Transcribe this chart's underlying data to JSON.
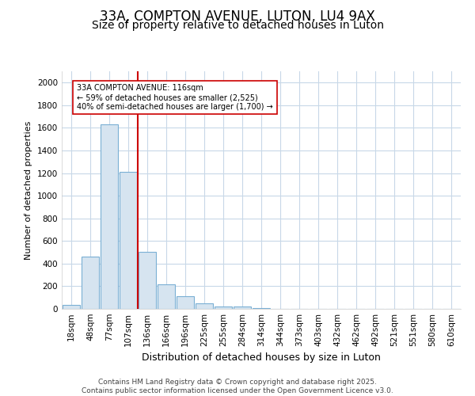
{
  "title1": "33A, COMPTON AVENUE, LUTON, LU4 9AX",
  "title2": "Size of property relative to detached houses in Luton",
  "xlabel": "Distribution of detached houses by size in Luton",
  "ylabel": "Number of detached properties",
  "categories": [
    "18sqm",
    "48sqm",
    "77sqm",
    "107sqm",
    "136sqm",
    "166sqm",
    "196sqm",
    "225sqm",
    "255sqm",
    "284sqm",
    "314sqm",
    "344sqm",
    "373sqm",
    "403sqm",
    "432sqm",
    "462sqm",
    "492sqm",
    "521sqm",
    "551sqm",
    "580sqm",
    "610sqm"
  ],
  "values": [
    35,
    460,
    1630,
    1210,
    505,
    220,
    110,
    50,
    20,
    20,
    5,
    0,
    0,
    0,
    0,
    0,
    0,
    0,
    0,
    0,
    0
  ],
  "bar_color": "#d6e4f0",
  "bar_edge_color": "#7aafd4",
  "vline_color": "#cc0000",
  "vline_pos": 3.5,
  "annotation_text": "33A COMPTON AVENUE: 116sqm\n← 59% of detached houses are smaller (2,525)\n40% of semi-detached houses are larger (1,700) →",
  "annotation_box_facecolor": "#ffffff",
  "annotation_box_edgecolor": "#cc0000",
  "ylim": [
    0,
    2100
  ],
  "yticks": [
    0,
    200,
    400,
    600,
    800,
    1000,
    1200,
    1400,
    1600,
    1800,
    2000
  ],
  "bg_color": "#ffffff",
  "plot_bg_color": "#ffffff",
  "grid_color": "#c8d8e8",
  "footer": "Contains HM Land Registry data © Crown copyright and database right 2025.\nContains public sector information licensed under the Open Government Licence v3.0.",
  "title1_fontsize": 12,
  "title2_fontsize": 10,
  "xlabel_fontsize": 9,
  "ylabel_fontsize": 8,
  "tick_fontsize": 7.5,
  "footer_fontsize": 6.5
}
